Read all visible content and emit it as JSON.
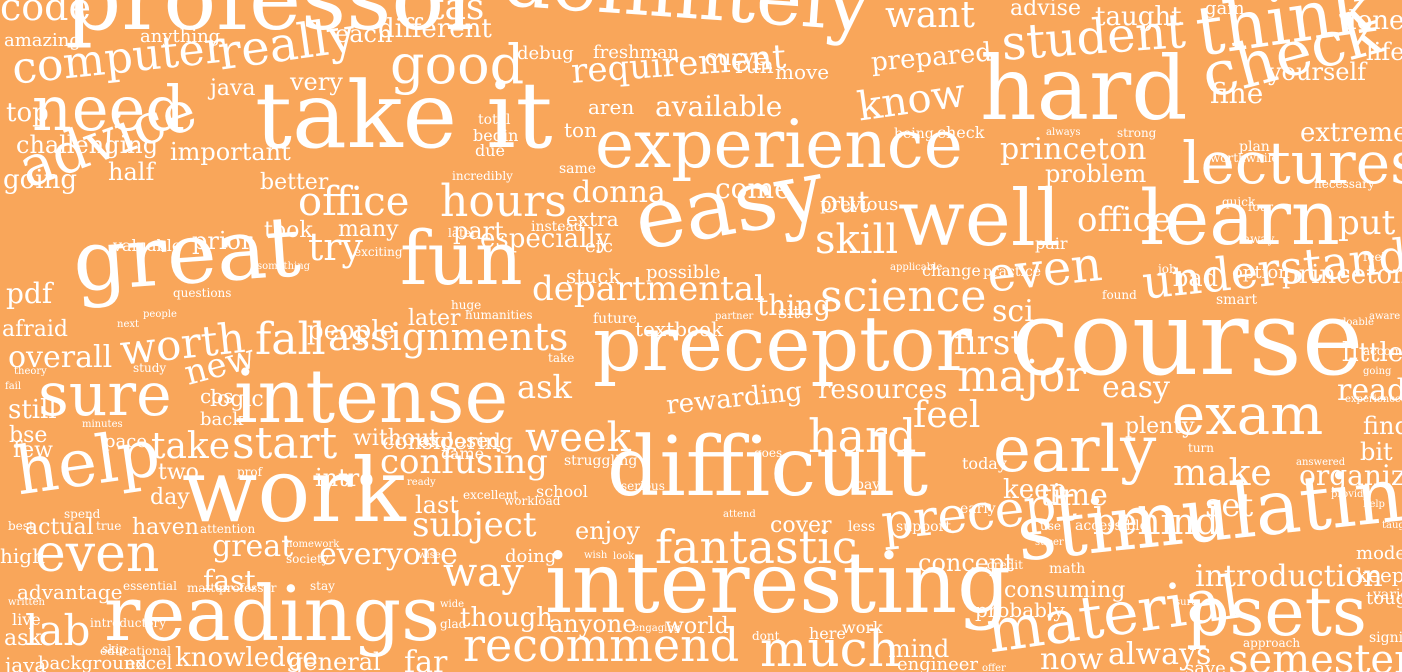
{
  "colors": {
    "background": "#F9A65A",
    "word": "#FFFFFF"
  },
  "words": [
    "code",
    "professor",
    "tas",
    "definitely",
    "want",
    "advise",
    "taught",
    "gain",
    "done",
    "amazing",
    "anything",
    "each",
    "different",
    "student",
    "think",
    "life",
    "computer",
    "really",
    "good",
    "requirement",
    "hard",
    "check",
    "fine",
    "yourself",
    "need",
    "java",
    "very",
    "move",
    "prepared",
    "top",
    "take it",
    "know",
    "extremely",
    "challenging",
    "important",
    "available",
    "experience",
    "princeton",
    "lectures",
    "going",
    "half",
    "better",
    "office",
    "hours",
    "donna",
    "come",
    "out",
    "problem",
    "advice",
    "easy",
    "well",
    "office",
    "learn",
    "put",
    "great",
    "try",
    "fun",
    "skill",
    "even",
    "understand",
    "pdf",
    "took",
    "many",
    "prior",
    "part",
    "especially",
    "etc",
    "stuck",
    "possible",
    "departmental",
    "thing",
    "science",
    "bad",
    "option",
    "princeton",
    "afraid",
    "worth",
    "later",
    "people",
    "fall",
    "assignments",
    "preceptor",
    "first",
    "sci",
    "course",
    "little",
    "overall",
    "new",
    "cos",
    "textbook",
    "major",
    "read",
    "sure",
    "intense",
    "ask",
    "resources",
    "easy",
    "rewarding",
    "feel",
    "exam",
    "find",
    "still",
    "logic",
    "bit",
    "bse",
    "take",
    "start",
    "without",
    "week",
    "hard",
    "early",
    "plenty",
    "help",
    "work",
    "confusing",
    "difficult",
    "keep",
    "make",
    "organized",
    "few",
    "two",
    "intro",
    "last",
    "subject",
    "time",
    "behind",
    "set",
    "day",
    "enjoy",
    "stimulating",
    "actual",
    "haven",
    "precept",
    "even",
    "great",
    "fantastic",
    "cover",
    "concept",
    "everyone",
    "way",
    "interesting",
    "modern",
    "high",
    "doing",
    "fast",
    "introduction",
    "keep",
    "advantage",
    "readings",
    "though",
    "consuming",
    "psets",
    "tough",
    "lab",
    "anyone",
    "world",
    "material",
    "probably",
    "ask",
    "recommend",
    "much",
    "mind",
    "knowledge",
    "general",
    "far",
    "background",
    "excel",
    "engineer",
    "now",
    "always",
    "save",
    "semester",
    "java",
    "curve",
    "run",
    "debug",
    "freshman",
    "aren",
    "ton",
    "due",
    "begin",
    "total",
    "incredibly",
    "same",
    "extra",
    "instead",
    "later",
    "humanities",
    "future",
    "partner",
    "site",
    "previous",
    "applicable",
    "change",
    "practice",
    "found",
    "smart",
    "job",
    "doable",
    "away",
    "pair",
    "something",
    "valuable",
    "questions",
    "people",
    "next",
    "back",
    "study",
    "pace",
    "minutes",
    "spend",
    "best",
    "written",
    "live",
    "theory",
    "fail",
    "considering",
    "exposed",
    "came",
    "struggling",
    "ready",
    "excellent",
    "workload",
    "school",
    "serious",
    "goes",
    "pay",
    "attend",
    "less",
    "support",
    "today",
    "early",
    "use",
    "accessible",
    "super",
    "math",
    "sure",
    "turn",
    "help",
    "credit",
    "offer",
    "skip",
    "introductory",
    "educational",
    "wide",
    "glad",
    "stay",
    "prof",
    "true",
    "attention",
    "essential",
    "matter",
    "professor",
    "homework",
    "society",
    "wise",
    "look",
    "wish",
    "dont",
    "here",
    "work",
    "engaging",
    "being",
    "check",
    "always",
    "strong",
    "plan",
    "worthwhile",
    "necessary",
    "quick",
    "four",
    "feel",
    "aware",
    "going",
    "accomplishment",
    "experienced",
    "answered",
    "provide",
    "taught",
    "varied",
    "significant",
    "approach",
    "exciting",
    "huge",
    "take"
  ]
}
